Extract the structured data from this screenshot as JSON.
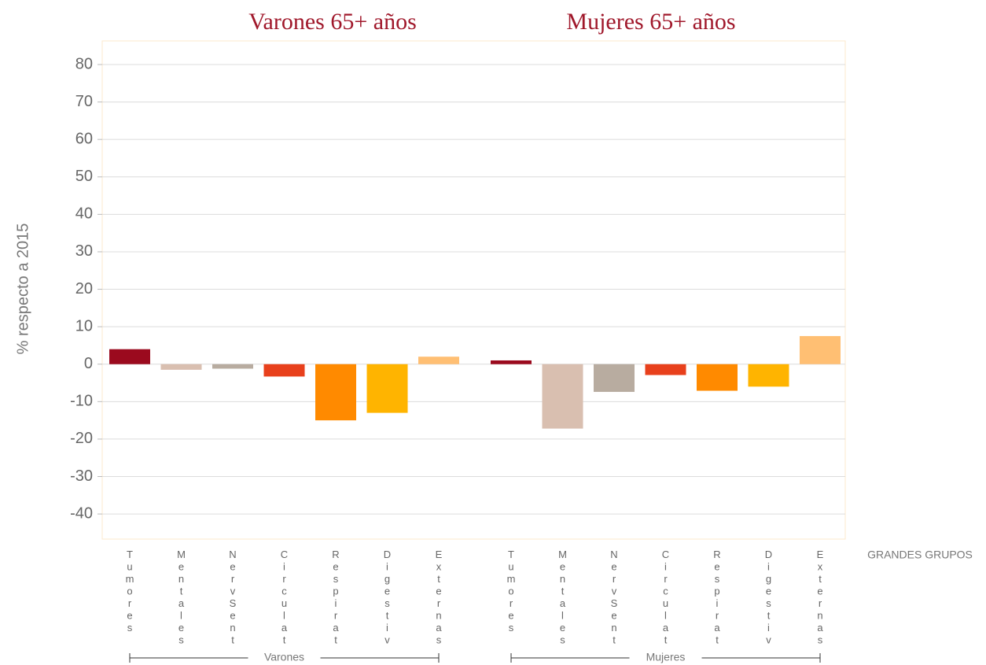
{
  "chart_data": {
    "type": "bar",
    "titles": [
      "Varones 65+ años",
      "Mujeres 65+ años"
    ],
    "y_label": "% respecto a 2015",
    "x_label": "GRANDES GRUPOS",
    "categories": [
      "Tumores",
      "Mentales",
      "NervSent",
      "Circulat",
      "Respirat",
      "Digestiv",
      "Externas"
    ],
    "colors": [
      "#9b0a1e",
      "#d9bfb0",
      "#b8aca0",
      "#e8401c",
      "#ff8a00",
      "#ffb400",
      "#ffbf73"
    ],
    "series": [
      {
        "name": "Varones",
        "values": [
          4,
          -1.5,
          -1.2,
          -3.3,
          -15,
          -13,
          2
        ]
      },
      {
        "name": "Mujeres",
        "values": [
          1,
          -17.2,
          -7.4,
          -2.9,
          -7.1,
          -6,
          7.5
        ]
      }
    ],
    "ylim": [
      -46.7,
      86.3
    ],
    "yticks": [
      -40,
      -30,
      -20,
      -10,
      0,
      10,
      20,
      30,
      40,
      50,
      60,
      70,
      80
    ],
    "grid": true
  }
}
